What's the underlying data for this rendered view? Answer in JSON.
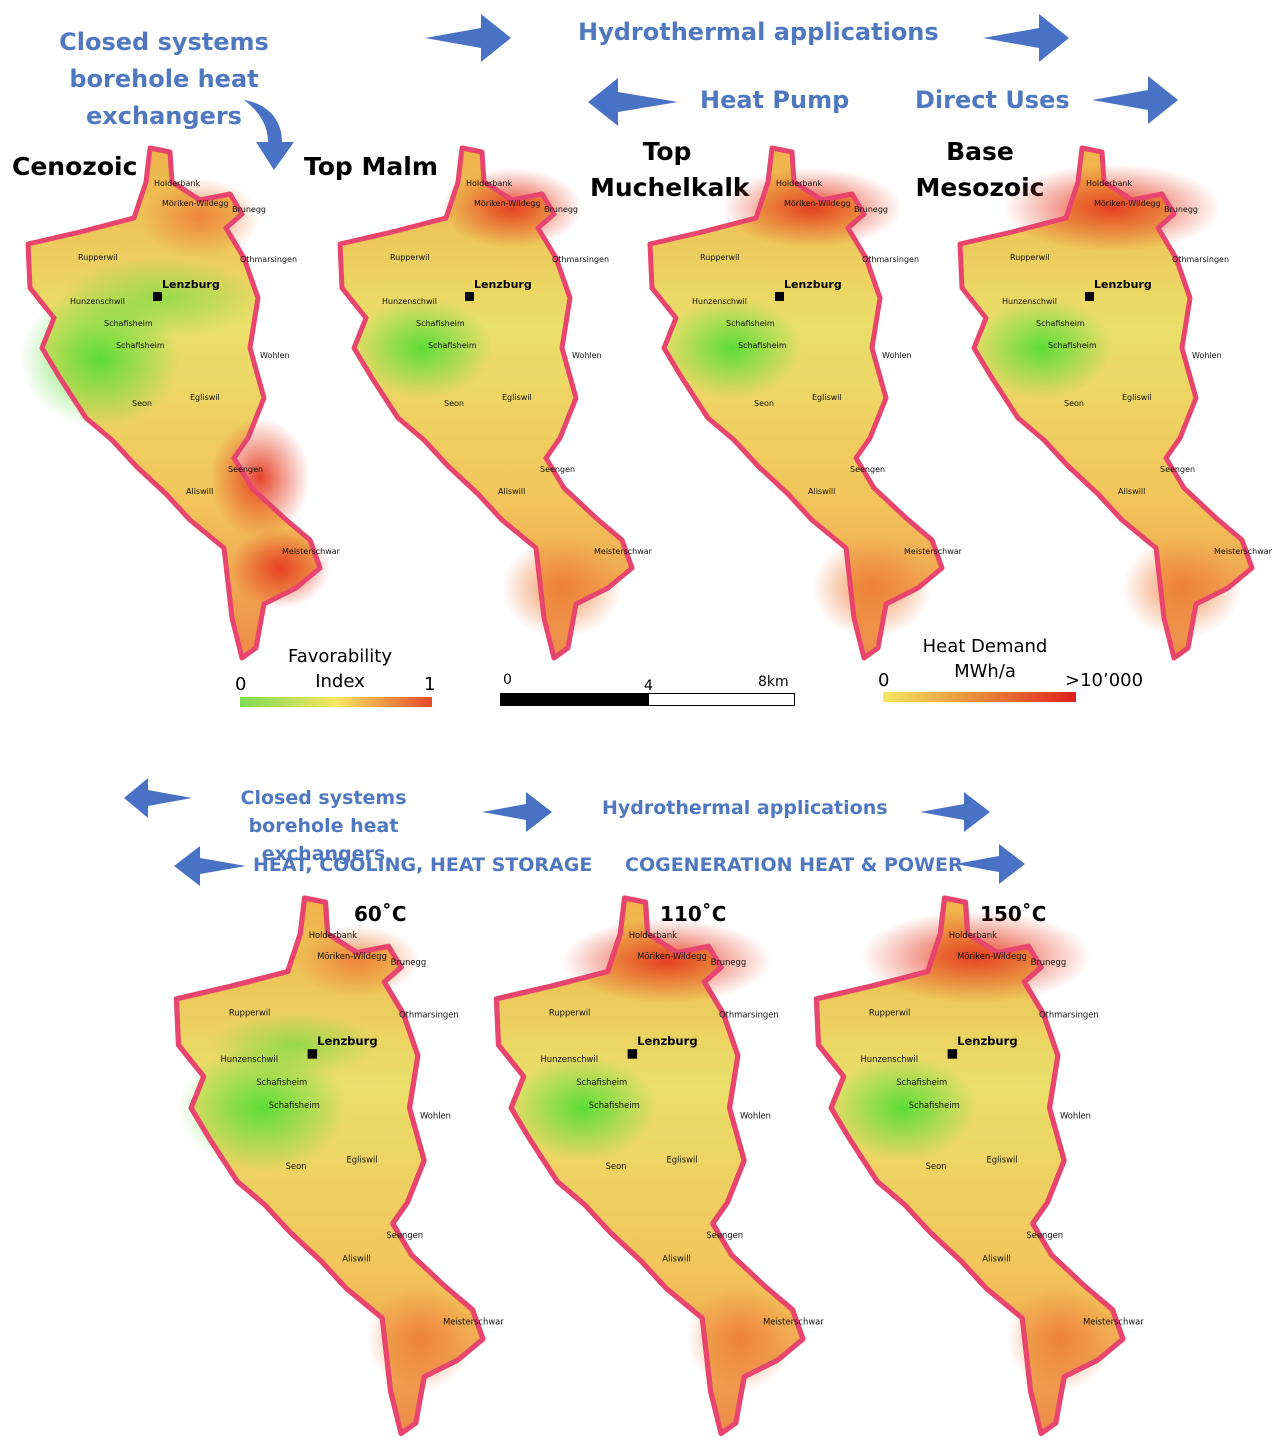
{
  "top": {
    "labels": {
      "closed": "Closed systems borehole heat exchangers",
      "hydro": "Hydrothermal applications",
      "heat_pump": "Heat Pump",
      "direct_uses": "Direct Uses"
    },
    "maps": [
      {
        "title": "Cenozoic"
      },
      {
        "title": "Top Malm"
      },
      {
        "title": "Top Muchelkalk"
      },
      {
        "title": "Base Mesozoic"
      }
    ],
    "legend_favorability": {
      "title": "Favorability Index",
      "min": "0",
      "max": "1",
      "colors": [
        "#7ed957",
        "#f5e663",
        "#e84a2a"
      ]
    },
    "scalebar": {
      "zero": "0",
      "mid": "4",
      "end": "8km"
    },
    "legend_heat": {
      "title": "Heat Demand MWh/a",
      "min": "0",
      "max": ">10’000",
      "colors": [
        "#f5e663",
        "#e88a3a",
        "#e02020"
      ]
    }
  },
  "bottom": {
    "labels": {
      "closed": "Closed systems borehole heat exchangers",
      "hydro": "Hydrothermal applications",
      "heat_cool": "HEAT, COOLING, HEAT STORAGE",
      "cogen": "COGENERATION HEAT & POWER"
    },
    "maps": [
      {
        "title": "60˚C"
      },
      {
        "title": "110˚C"
      },
      {
        "title": "150˚C"
      }
    ]
  },
  "towns": {
    "holderbank": "Holderbank",
    "moriken": "Möriken-Wildegg",
    "brunegg": "Brunegg",
    "rupperwil": "Rupperwil",
    "othmarsingen": "Othmarsingen",
    "lenzburg": "Lenzburg",
    "hunzenschwil": "Hunzenschwil",
    "schafisheim": "Schafisheim",
    "wohlen": "Wohlen",
    "seon": "Seon",
    "egliswil": "Egliswil",
    "seengen": "Seengen",
    "aliswil": "Aliswill",
    "meisterschwanden": "Meisterschwar"
  },
  "colors": {
    "label_blue": "#5078c0",
    "arrow_blue": "#4a72c4",
    "boundary": "#e8456e"
  }
}
